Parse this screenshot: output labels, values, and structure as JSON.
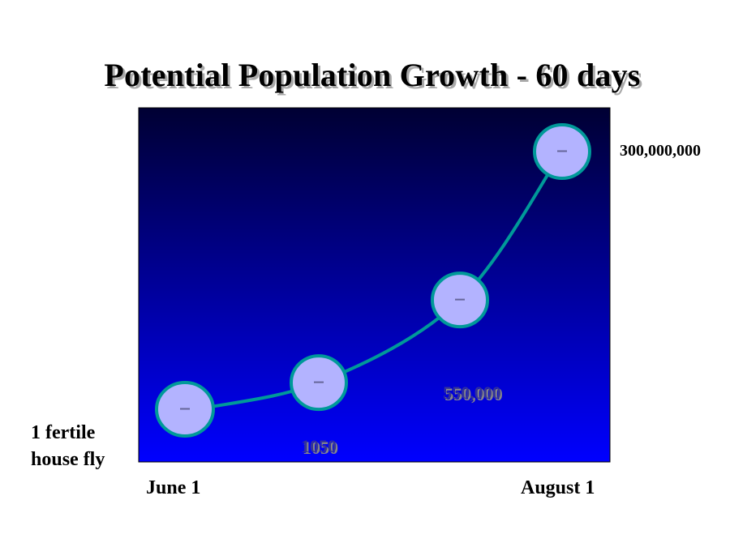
{
  "title": "Potential Population Growth - 60 days",
  "start_label": "1 fertile house fly",
  "end_label": "300,000,000",
  "x_ticks": {
    "start": "June 1",
    "end": "August 1"
  },
  "colors": {
    "plot_top": "#000033",
    "plot_bottom": "#0000ff",
    "curve": "#009999",
    "marker_fill": "#b3b3ff",
    "marker_stroke": "#009999",
    "data_label": "#333399"
  },
  "chart_data": {
    "type": "line",
    "title": "Potential Population Growth - 60 days",
    "x": [
      "June 1",
      "",
      "",
      "August 1"
    ],
    "values": [
      1,
      1050,
      550000,
      300000000
    ],
    "labels": [
      "",
      "1050",
      "550,000",
      ""
    ],
    "xlabel": "",
    "ylabel": "",
    "grid": false,
    "legend": "none",
    "yscale": "exponential illustration"
  }
}
